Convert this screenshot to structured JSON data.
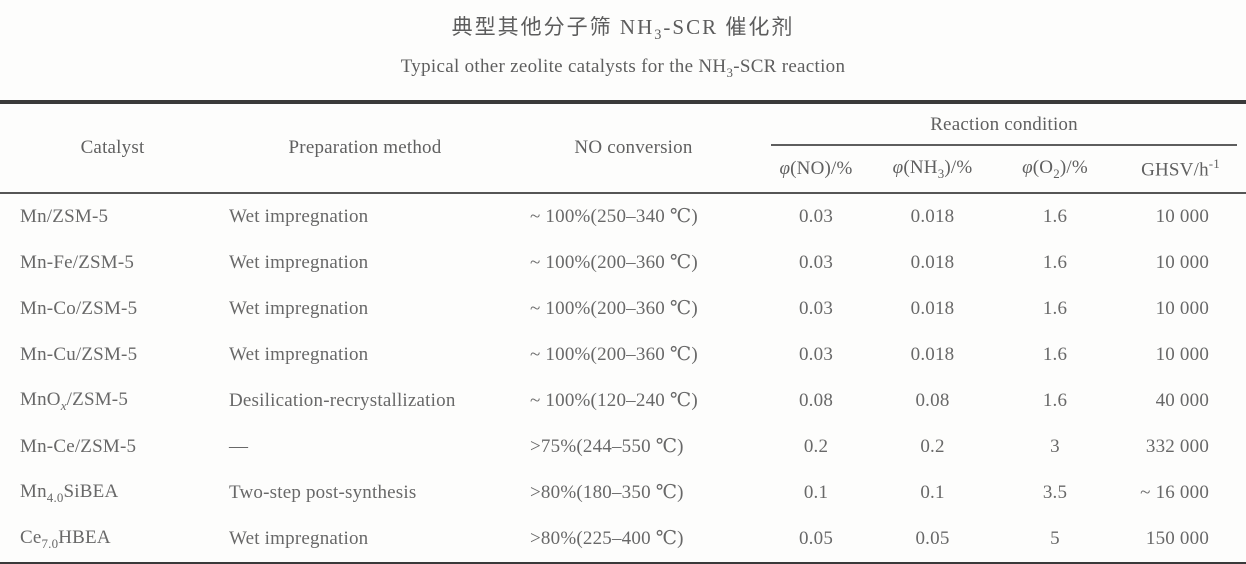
{
  "page": {
    "title_zh": "典型其他分子筛 NH<sub>3</sub>-SCR 催化剂",
    "title_en": "Typical other zeolite catalysts for the NH<sub>3</sub>-SCR reaction",
    "artifact_mark": ","
  },
  "table": {
    "headers": {
      "catalyst": "Catalyst",
      "preparation": "Preparation method",
      "no_conversion": "NO conversion",
      "reaction_condition": "Reaction condition",
      "phi_no": "<i>φ</i>(NO)/%",
      "phi_nh3": "<i>φ</i>(NH<sub>3</sub>)/%",
      "phi_o2": "<i>φ</i>(O<sub>2</sub>)/%",
      "ghsv": "GHSV/h<sup>-1</sup>"
    },
    "rows": [
      {
        "catalyst": "Mn/ZSM-5",
        "preparation": "Wet impregnation",
        "no_conversion": "~ 100%(250–340 ℃)",
        "phi_no": "0.03",
        "phi_nh3": "0.018",
        "phi_o2": "1.6",
        "ghsv": "10 000"
      },
      {
        "catalyst": "Mn-Fe/ZSM-5",
        "preparation": "Wet impregnation",
        "no_conversion": "~ 100%(200–360 ℃)",
        "phi_no": "0.03",
        "phi_nh3": "0.018",
        "phi_o2": "1.6",
        "ghsv": "10 000"
      },
      {
        "catalyst": "Mn-Co/ZSM-5",
        "preparation": "Wet impregnation",
        "no_conversion": "~ 100%(200–360 ℃)",
        "phi_no": "0.03",
        "phi_nh3": "0.018",
        "phi_o2": "1.6",
        "ghsv": "10 000"
      },
      {
        "catalyst": "Mn-Cu/ZSM-5",
        "preparation": "Wet impregnation",
        "no_conversion": "~ 100%(200–360 ℃)",
        "phi_no": "0.03",
        "phi_nh3": "0.018",
        "phi_o2": "1.6",
        "ghsv": "10 000"
      },
      {
        "catalyst": "MnO<sub><i>x</i></sub>/ZSM-5",
        "preparation": "Desilication-recrystallization",
        "no_conversion": "~ 100%(120–240 ℃)",
        "phi_no": "0.08",
        "phi_nh3": "0.08",
        "phi_o2": "1.6",
        "ghsv": "40 000"
      },
      {
        "catalyst": "Mn-Ce/ZSM-5",
        "preparation": "—",
        "no_conversion": ">75%(244–550 ℃)",
        "phi_no": "0.2",
        "phi_nh3": "0.2",
        "phi_o2": "3",
        "ghsv": "332 000"
      },
      {
        "catalyst": "Mn<sub>4.0</sub>SiBEA",
        "preparation": "Two-step post-synthesis",
        "no_conversion": ">80%(180–350 ℃)",
        "phi_no": "0.1",
        "phi_nh3": "0.1",
        "phi_o2": "3.5",
        "ghsv": "~ 16 000"
      },
      {
        "catalyst": "Ce<sub>7.0</sub>HBEA",
        "preparation": "Wet impregnation",
        "no_conversion": ">80%(225–400 ℃)",
        "phi_no": "0.05",
        "phi_nh3": "0.05",
        "phi_o2": "5",
        "ghsv": "150 000"
      }
    ]
  }
}
